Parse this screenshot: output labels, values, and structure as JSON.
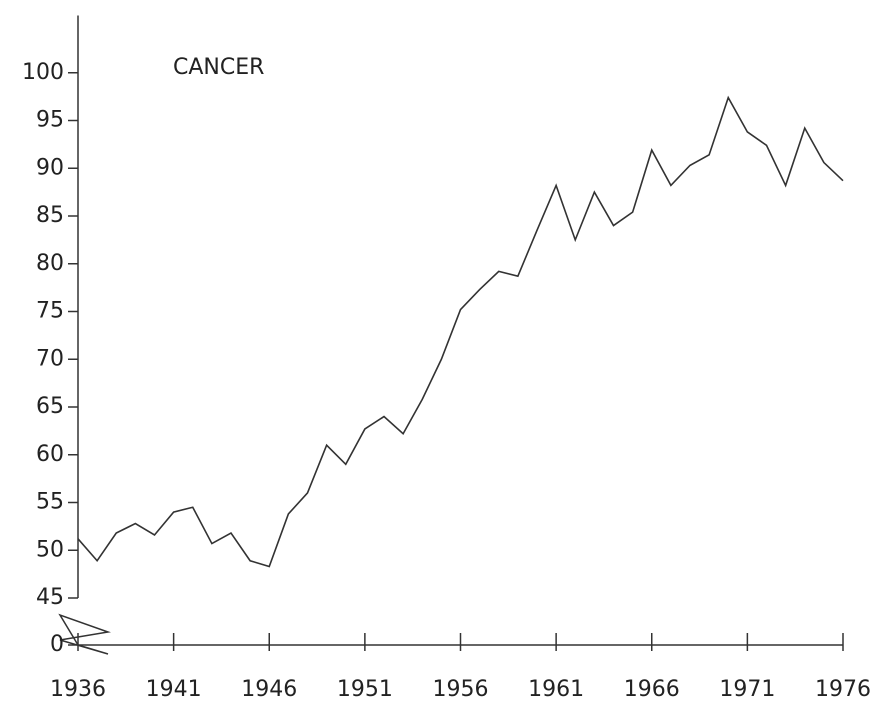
{
  "chart_data": {
    "type": "line",
    "title": "CANCER",
    "x": [
      1936,
      1937,
      1938,
      1939,
      1940,
      1941,
      1942,
      1943,
      1944,
      1945,
      1946,
      1947,
      1948,
      1949,
      1950,
      1951,
      1952,
      1953,
      1954,
      1955,
      1956,
      1957,
      1958,
      1959,
      1960,
      1961,
      1962,
      1963,
      1964,
      1965,
      1966,
      1967,
      1968,
      1969,
      1970,
      1971,
      1972,
      1973,
      1974,
      1975,
      1976
    ],
    "series": [
      {
        "name": "CANCER",
        "color": "#333333",
        "values": [
          51.2,
          48.9,
          51.8,
          52.8,
          51.6,
          54,
          54.5,
          50.7,
          51.8,
          48.9,
          48.3,
          53.8,
          56,
          61,
          59,
          62.7,
          64,
          62.2,
          65.8,
          70,
          75.2,
          77.3,
          79.2,
          78.7,
          83.5,
          88.2,
          82.5,
          87.5,
          84,
          85.4,
          91.9,
          88.2,
          90.3,
          91.4,
          97.4,
          93.8,
          92.4,
          88.2,
          94.2,
          90.6,
          88.7
        ]
      }
    ],
    "xlim": [
      1936,
      1976
    ],
    "xticks": [
      1936,
      1941,
      1946,
      1951,
      1956,
      1961,
      1966,
      1971,
      1976
    ],
    "ylim": [
      0,
      106
    ],
    "ybreak": [
      0,
      45
    ],
    "yticks": [
      0,
      45,
      50,
      55,
      60,
      65,
      70,
      75,
      80,
      85,
      90,
      95,
      100
    ],
    "grid": false
  }
}
